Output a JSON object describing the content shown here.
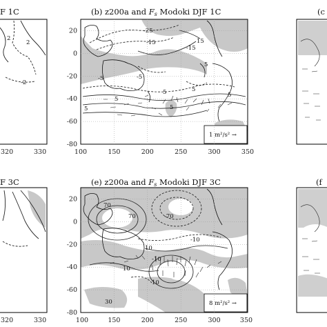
{
  "figure": {
    "panels": [
      {
        "id": "a",
        "title_visible": "F 1C"
      },
      {
        "id": "b",
        "title_prefix": "(b) z200a and ",
        "title_var": "F",
        "title_sub": "s",
        "title_suffix": " Modoki DJF 1C",
        "vector_label": "1 m²/s² →"
      },
      {
        "id": "c",
        "title_visible": "(c"
      },
      {
        "id": "d",
        "title_visible": "F 3C"
      },
      {
        "id": "e",
        "title_prefix": "(e) z200a and ",
        "title_var": "F",
        "title_sub": "s",
        "title_suffix": " Modoki DJF 3C",
        "vector_label": "8 m²/s² →"
      },
      {
        "id": "f",
        "title_visible": "(f"
      }
    ]
  },
  "chart_data": [
    {
      "panel": "a",
      "type": "contour",
      "x_ticks": [
        "320",
        "330"
      ],
      "y_ticks": [],
      "contour_labels": [
        "2",
        "2",
        "-2"
      ]
    },
    {
      "panel": "b",
      "type": "contour",
      "x_ticks": [
        "100",
        "150",
        "200",
        "250",
        "300",
        "350"
      ],
      "y_ticks": [
        "20",
        "0",
        "-20",
        "-40",
        "-60",
        "-80"
      ],
      "xlim": [
        100,
        350
      ],
      "ylim": [
        -80,
        30
      ],
      "contour_labels": [
        "-25",
        "-15",
        "-15",
        "15",
        "-5",
        "5",
        "5",
        "5",
        "-5",
        "5",
        "5",
        "5",
        "5"
      ],
      "reference_vector": "1 m²/s²",
      "shading": "gray"
    },
    {
      "panel": "d",
      "type": "contour",
      "x_ticks": [
        "320",
        "330"
      ],
      "y_ticks": [],
      "contour_labels": []
    },
    {
      "panel": "e",
      "type": "contour",
      "x_ticks": [
        "100",
        "150",
        "200",
        "250",
        "300",
        "350"
      ],
      "y_ticks": [
        "20",
        "0",
        "-20",
        "-40",
        "-60",
        "-80"
      ],
      "xlim": [
        100,
        350
      ],
      "ylim": [
        -80,
        30
      ],
      "contour_labels": [
        "70",
        "-70",
        "-10",
        "-10",
        "10",
        "10",
        "10",
        "30",
        "70"
      ],
      "reference_vector": "8 m²/s²",
      "shading": "gray"
    }
  ]
}
